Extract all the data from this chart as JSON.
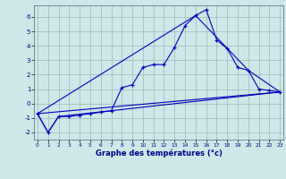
{
  "title": "",
  "xlabel": "Graphe des températures (°c)",
  "ylabel": "",
  "bg_color": "#cce8e8",
  "line_color": "#0000bb",
  "grid_color": "#99bbbb",
  "ylim": [
    -2.5,
    6.8
  ],
  "xlim": [
    -0.3,
    23.3
  ],
  "yticks": [
    -2,
    -1,
    0,
    1,
    2,
    3,
    4,
    5,
    6
  ],
  "xticks": [
    0,
    1,
    2,
    3,
    4,
    5,
    6,
    7,
    8,
    9,
    10,
    11,
    12,
    13,
    14,
    15,
    16,
    17,
    18,
    19,
    20,
    21,
    22,
    23
  ],
  "series": [
    {
      "x": [
        0,
        1,
        2,
        3,
        4,
        5,
        6,
        7,
        8,
        9,
        10,
        11,
        12,
        13,
        14,
        15,
        16,
        17,
        18,
        19,
        20,
        21,
        22,
        23
      ],
      "y": [
        -0.7,
        -2.0,
        -0.9,
        -0.9,
        -0.8,
        -0.7,
        -0.6,
        -0.5,
        1.1,
        1.3,
        2.5,
        2.7,
        2.7,
        3.9,
        5.4,
        6.1,
        6.5,
        4.4,
        3.8,
        2.5,
        2.3,
        1.0,
        0.9,
        0.8
      ]
    },
    {
      "x": [
        0,
        23
      ],
      "y": [
        -0.7,
        0.8
      ]
    },
    {
      "x": [
        0,
        1,
        2,
        23
      ],
      "y": [
        -0.7,
        -2.0,
        -0.9,
        0.8
      ]
    },
    {
      "x": [
        0,
        15,
        20,
        23
      ],
      "y": [
        -0.7,
        6.1,
        2.3,
        0.8
      ]
    }
  ]
}
